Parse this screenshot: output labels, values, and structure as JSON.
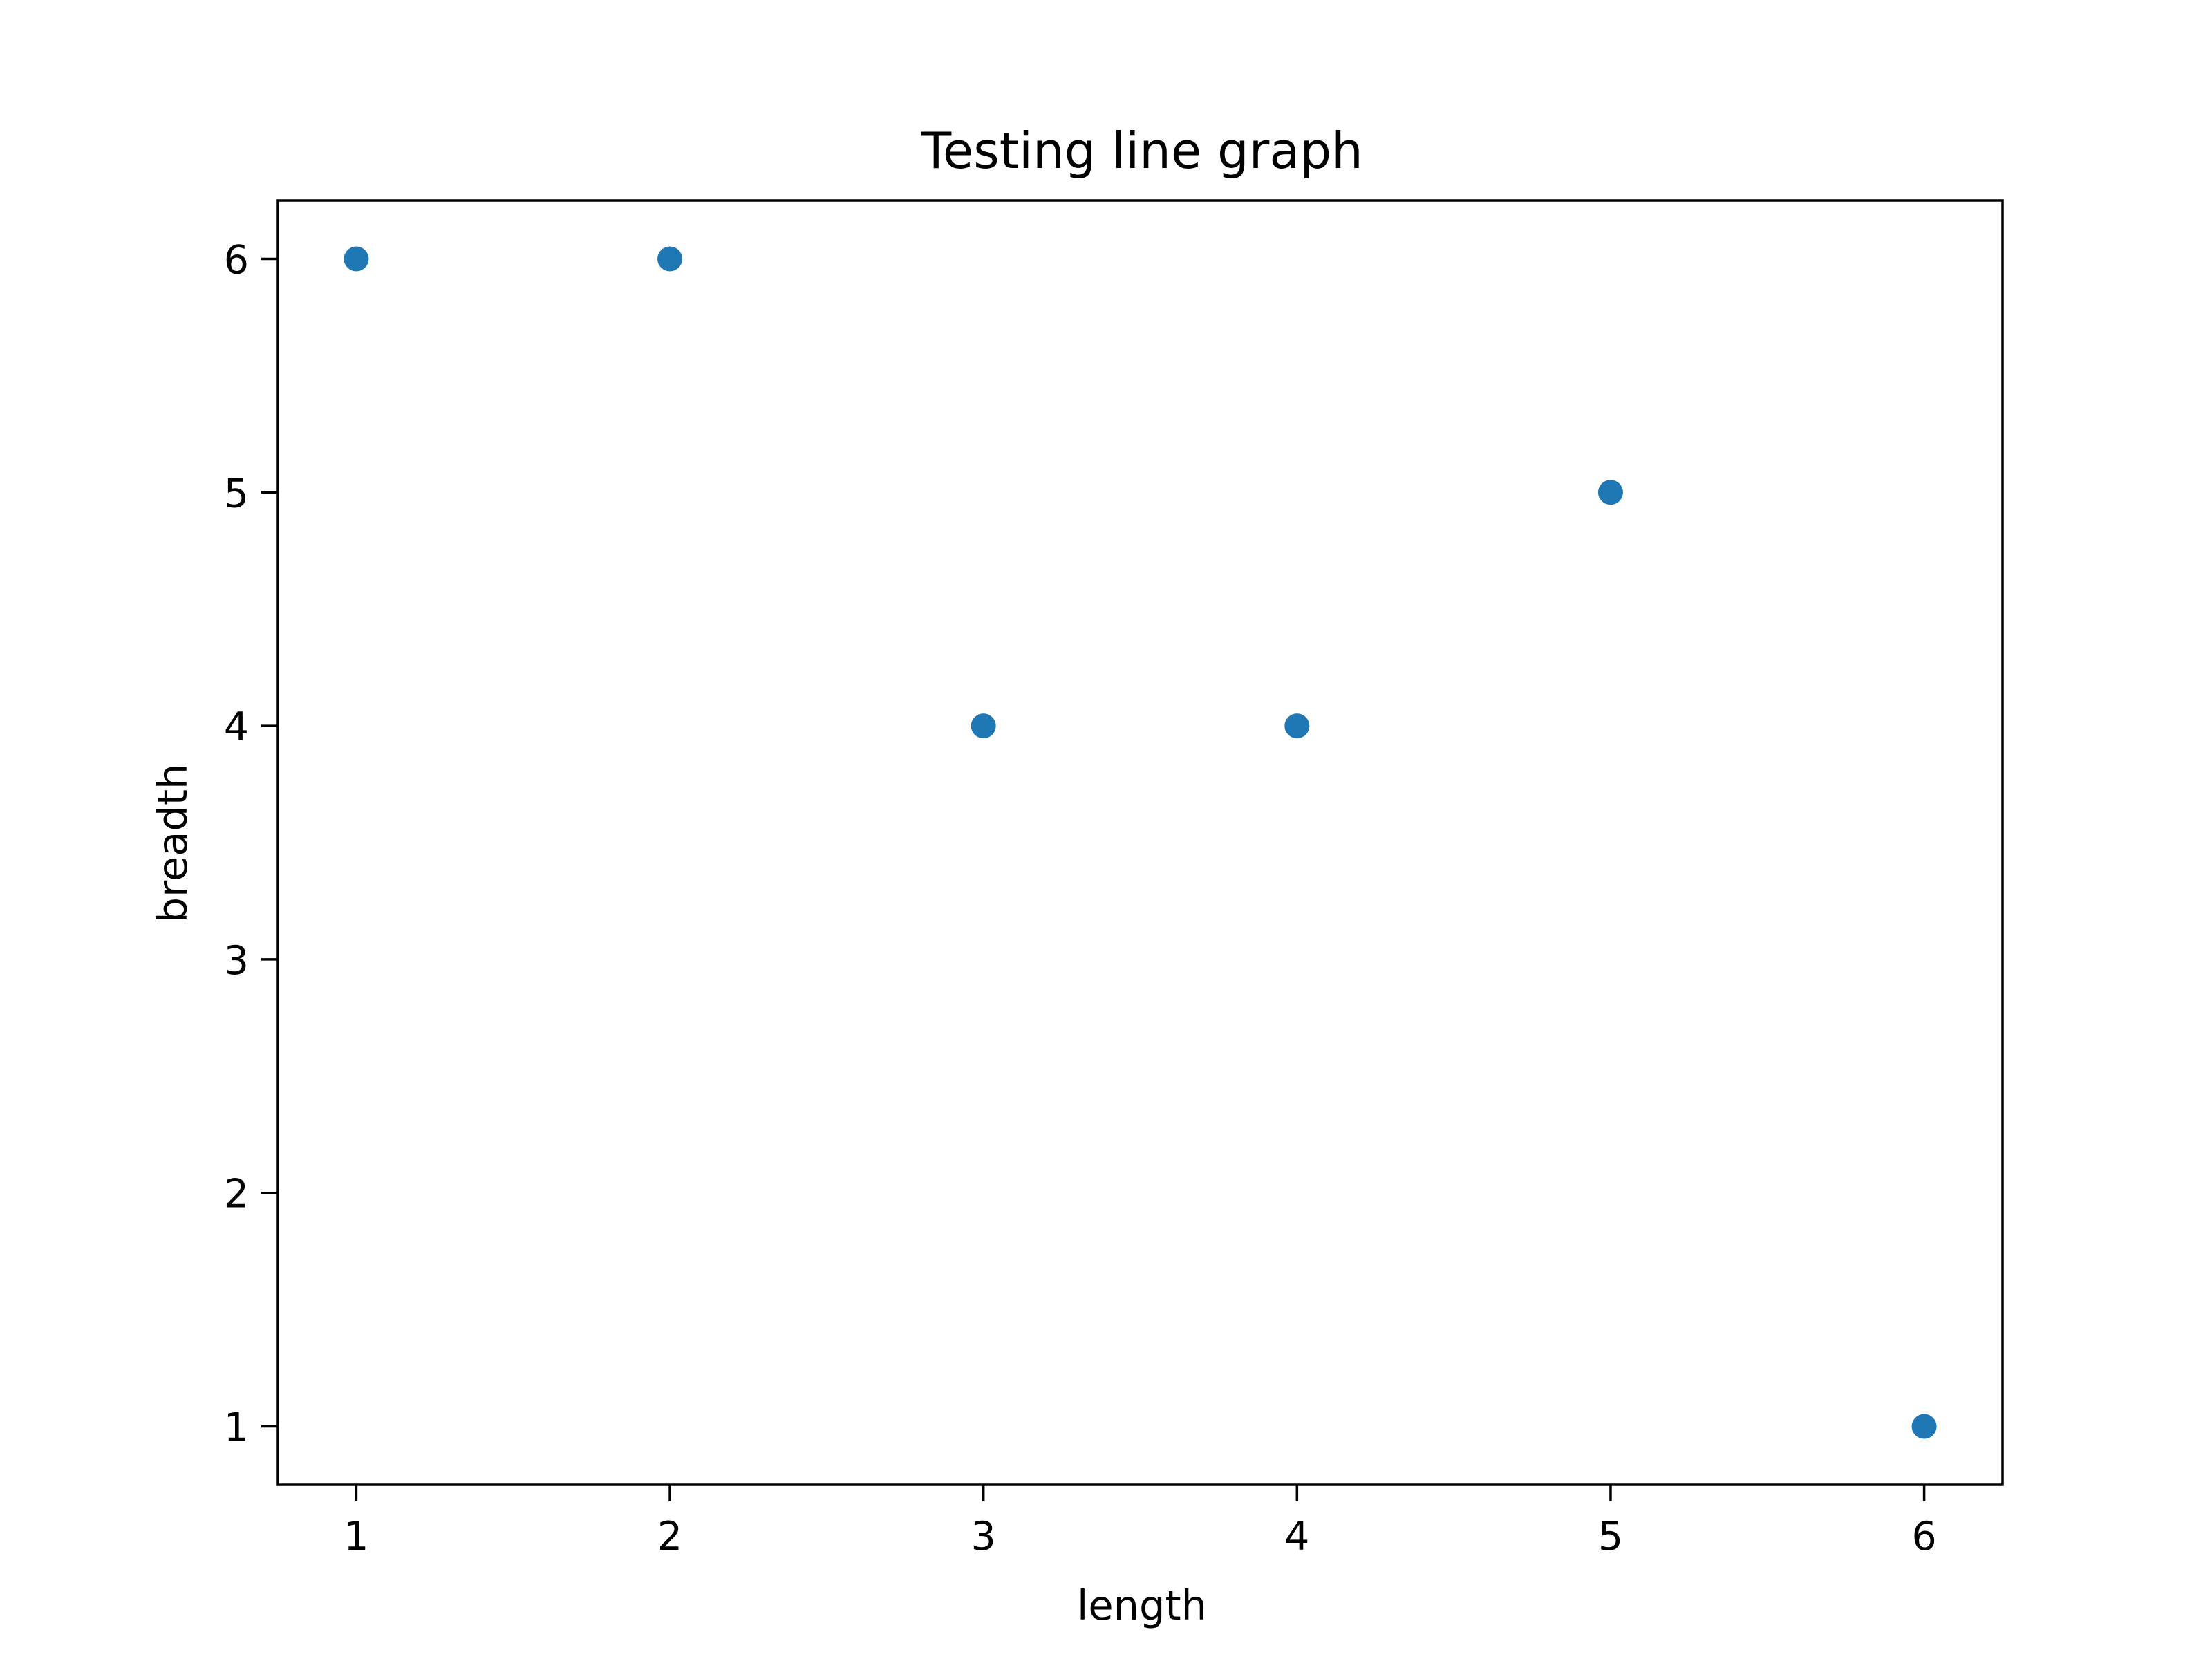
{
  "chart_data": {
    "type": "scatter",
    "title": "Testing line graph",
    "xlabel": "length",
    "ylabel": "breadth",
    "x": [
      1,
      2,
      3,
      4,
      5,
      6
    ],
    "y": [
      6,
      6,
      4,
      4,
      5,
      1
    ],
    "xlim": [
      0.75,
      6.25
    ],
    "ylim": [
      0.75,
      6.25
    ],
    "xticks": [
      1,
      2,
      3,
      4,
      5,
      6
    ],
    "yticks": [
      1,
      2,
      3,
      4,
      5,
      6
    ],
    "marker_color": "#1f77b4",
    "grid": false,
    "legend": "none"
  }
}
